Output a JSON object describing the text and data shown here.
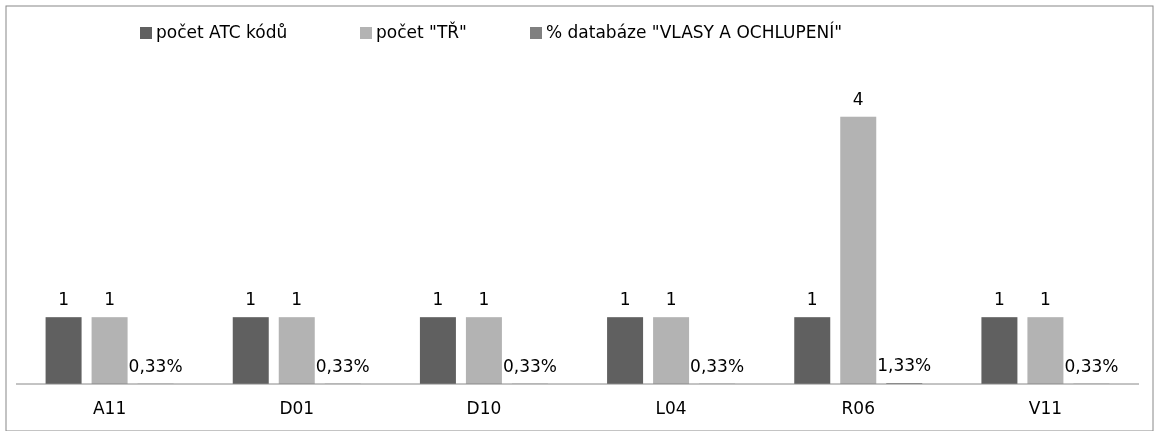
{
  "chart_data": {
    "type": "bar",
    "categories": [
      "A11",
      "D01",
      "D10",
      "L04",
      "R06",
      "V11"
    ],
    "series": [
      {
        "name": "počet ATC kódů",
        "color": "#606060",
        "values": [
          1,
          1,
          1,
          1,
          1,
          1
        ],
        "value_labels": [
          "1",
          "1",
          "1",
          "1",
          "1",
          "1"
        ]
      },
      {
        "name": "počet \"TŘ\"",
        "color": "#b3b3b3",
        "values": [
          1,
          1,
          1,
          1,
          4,
          1
        ],
        "value_labels": [
          "1",
          "1",
          "1",
          "1",
          "4",
          "1"
        ]
      },
      {
        "name": "% databáze  \"VLASY A OCHLUPENÍ\"",
        "color": "#808080",
        "values": [
          0.0033,
          0.0033,
          0.0033,
          0.0033,
          0.0133,
          0.0033
        ],
        "value_labels": [
          "0,33%",
          "0,33%",
          "0,33%",
          "0,33%",
          "1,33%",
          "0,33%"
        ]
      }
    ],
    "legend": "top",
    "grid": false
  }
}
